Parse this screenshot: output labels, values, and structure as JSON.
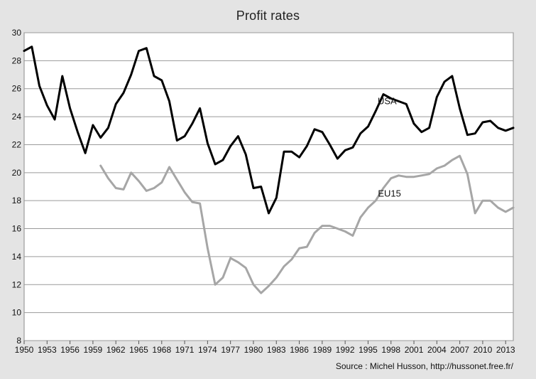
{
  "chart_data": {
    "type": "line",
    "title": "Profit rates",
    "xlabel": "",
    "ylabel": "",
    "xlim": [
      1950,
      2014
    ],
    "ylim": [
      8,
      30
    ],
    "grid": true,
    "x_ticks": [
      1950,
      1953,
      1956,
      1959,
      1962,
      1965,
      1968,
      1971,
      1974,
      1977,
      1980,
      1983,
      1986,
      1989,
      1992,
      1995,
      1998,
      2001,
      2004,
      2007,
      2010,
      2013
    ],
    "y_ticks": [
      8,
      10,
      12,
      14,
      16,
      18,
      20,
      22,
      24,
      26,
      28,
      30
    ],
    "series": [
      {
        "name": "USA",
        "color": "#000000",
        "x": [
          1950,
          1951,
          1952,
          1953,
          1954,
          1955,
          1956,
          1957,
          1958,
          1959,
          1960,
          1961,
          1962,
          1963,
          1964,
          1965,
          1966,
          1967,
          1968,
          1969,
          1970,
          1971,
          1972,
          1973,
          1974,
          1975,
          1976,
          1977,
          1978,
          1979,
          1980,
          1981,
          1982,
          1983,
          1984,
          1985,
          1986,
          1987,
          1988,
          1989,
          1990,
          1991,
          1992,
          1993,
          1994,
          1995,
          1996,
          1997,
          1998,
          1999,
          2000,
          2001,
          2002,
          2003,
          2004,
          2005,
          2006,
          2007,
          2008,
          2009,
          2010,
          2011,
          2012,
          2013,
          2014
        ],
        "values": [
          28.7,
          29.0,
          26.2,
          24.8,
          23.8,
          26.9,
          24.6,
          22.9,
          21.4,
          23.4,
          22.5,
          23.2,
          24.9,
          25.7,
          27.0,
          28.7,
          28.9,
          26.9,
          26.6,
          25.1,
          22.3,
          22.6,
          23.5,
          24.6,
          22.1,
          20.6,
          20.9,
          21.9,
          22.6,
          21.3,
          18.9,
          19.0,
          17.1,
          18.2,
          21.5,
          21.5,
          21.1,
          21.9,
          23.1,
          22.9,
          22.0,
          21.0,
          21.6,
          21.8,
          22.8,
          23.3,
          24.4,
          25.6,
          25.3,
          25.1,
          24.9,
          23.5,
          22.9,
          23.2,
          25.4,
          26.5,
          26.9,
          24.6,
          22.7,
          22.8,
          23.6,
          23.7,
          23.2,
          23.0,
          23.2
        ]
      },
      {
        "name": "EU15",
        "color": "#a6a6a6",
        "x": [
          1960,
          1961,
          1962,
          1963,
          1964,
          1965,
          1966,
          1967,
          1968,
          1969,
          1970,
          1971,
          1972,
          1973,
          1974,
          1975,
          1976,
          1977,
          1978,
          1979,
          1980,
          1981,
          1982,
          1983,
          1984,
          1985,
          1986,
          1987,
          1988,
          1989,
          1990,
          1991,
          1992,
          1993,
          1994,
          1995,
          1996,
          1997,
          1998,
          1999,
          2000,
          2001,
          2002,
          2003,
          2004,
          2005,
          2006,
          2007,
          2008,
          2009,
          2010,
          2011,
          2012,
          2013,
          2014
        ],
        "values": [
          20.5,
          19.6,
          18.9,
          18.8,
          20.0,
          19.4,
          18.7,
          18.9,
          19.3,
          20.4,
          19.5,
          18.6,
          17.9,
          17.8,
          14.6,
          12.0,
          12.5,
          13.9,
          13.6,
          13.2,
          12.0,
          11.4,
          11.9,
          12.5,
          13.3,
          13.8,
          14.6,
          14.7,
          15.7,
          16.2,
          16.2,
          16.0,
          15.8,
          15.5,
          16.8,
          17.5,
          18.0,
          18.9,
          19.6,
          19.8,
          19.7,
          19.7,
          19.8,
          19.9,
          20.3,
          20.5,
          20.9,
          21.2,
          19.9,
          17.1,
          18.0,
          18.0,
          17.5,
          17.2,
          17.5
        ]
      }
    ],
    "annotations": [
      {
        "text": "USA",
        "x": 1997.5,
        "y": 24.9
      },
      {
        "text": "EU15",
        "x": 1997.8,
        "y": 18.3
      }
    ],
    "source": "Source : Michel Husson, http://hussonet.free.fr/"
  }
}
